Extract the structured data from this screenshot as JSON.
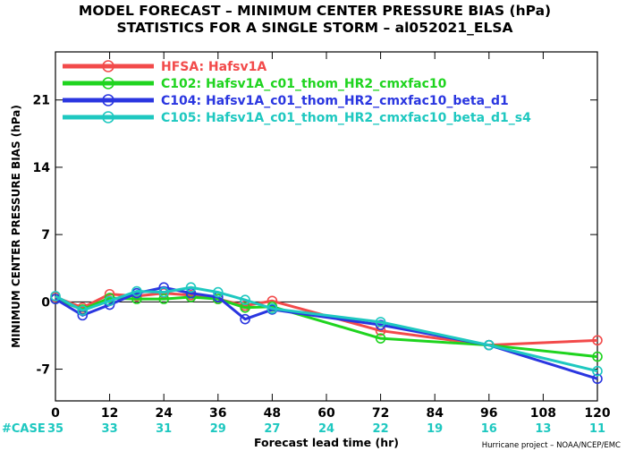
{
  "chart_data": {
    "type": "line",
    "title": "MODEL FORECAST – MINIMUM CENTER PRESSURE BIAS (hPa)",
    "subtitle": "STATISTICS FOR A SINGLE STORM – al052021_ELSA",
    "xlabel": "Forecast lead time (hr)",
    "ylabel": "MINIMUM CENTER PRESSURE BIAS (hPa)",
    "xlim": [
      0,
      120
    ],
    "ylim": [
      -10.3,
      26
    ],
    "xticks": [
      0,
      12,
      24,
      36,
      48,
      60,
      72,
      84,
      96,
      108,
      120
    ],
    "yticks": [
      -7,
      0,
      7,
      14,
      21
    ],
    "grid": false,
    "legend_position": "top-left",
    "case_label": "#CASE",
    "case_counts": [
      35,
      33,
      31,
      29,
      27,
      24,
      22,
      19,
      16,
      13,
      11
    ],
    "footer": "Hurricane project – NOAA/NCEP/EMC",
    "series": [
      {
        "id": "HFSA",
        "name": "Hafsv1A",
        "color": "#f24a4a",
        "x": [
          0,
          6,
          12,
          18,
          24,
          30,
          36,
          42,
          48,
          72,
          96,
          120
        ],
        "y": [
          0.5,
          -0.6,
          0.8,
          0.6,
          0.9,
          0.7,
          0.3,
          -0.4,
          0.1,
          -3.0,
          -4.5,
          -4.0
        ]
      },
      {
        "id": "C102",
        "name": "Hafsv1A_c01_thom_HR2_cmxfac10",
        "color": "#1fd41f",
        "x": [
          0,
          6,
          12,
          18,
          24,
          30,
          36,
          42,
          48,
          72,
          96,
          120
        ],
        "y": [
          0.3,
          -0.8,
          0.4,
          0.3,
          0.3,
          0.5,
          0.3,
          -0.6,
          -0.5,
          -3.8,
          -4.5,
          -5.7
        ]
      },
      {
        "id": "C104",
        "name": "Hafsv1A_c01_thom_HR2_cmxfac10_beta_d1",
        "color": "#2a36e0",
        "x": [
          0,
          6,
          12,
          18,
          24,
          30,
          36,
          42,
          48,
          72,
          96,
          120
        ],
        "y": [
          0.3,
          -1.4,
          -0.3,
          0.9,
          1.5,
          0.9,
          0.5,
          -1.8,
          -0.8,
          -2.4,
          -4.5,
          -8.0
        ]
      },
      {
        "id": "C105",
        "name": "Hafsv1A_c01_thom_HR2_cmxfac10_beta_d1_s4",
        "color": "#1ec8c0",
        "x": [
          0,
          6,
          12,
          18,
          24,
          30,
          36,
          42,
          48,
          72,
          96,
          120
        ],
        "y": [
          0.6,
          -0.9,
          0.1,
          1.1,
          1.0,
          1.5,
          1.0,
          0.2,
          -0.7,
          -2.1,
          -4.5,
          -7.2
        ]
      }
    ]
  }
}
